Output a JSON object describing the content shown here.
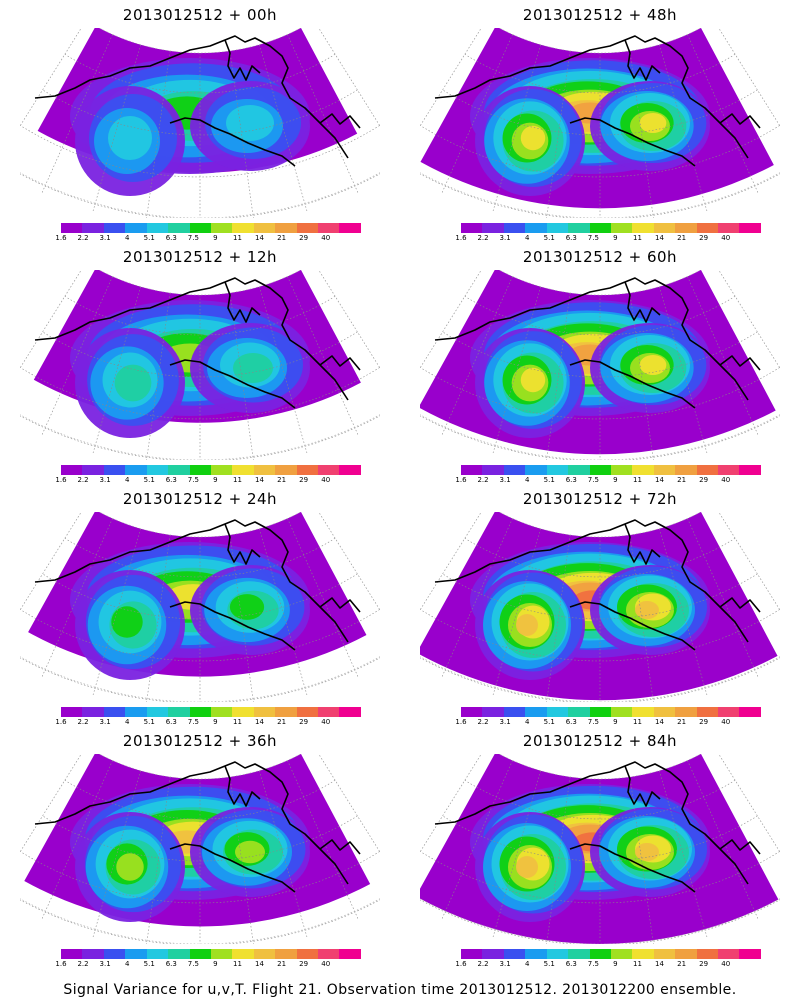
{
  "panels": [
    {
      "title": "2013012512 + 00h",
      "intensity": 0.3,
      "col": 0,
      "row": 0
    },
    {
      "title": "2013012512 + 48h",
      "intensity": 0.75,
      "col": 1,
      "row": 0
    },
    {
      "title": "2013012512 + 12h",
      "intensity": 0.4,
      "col": 0,
      "row": 1
    },
    {
      "title": "2013012512 + 60h",
      "intensity": 0.8,
      "col": 1,
      "row": 1
    },
    {
      "title": "2013012512 + 24h",
      "intensity": 0.55,
      "col": 0,
      "row": 2
    },
    {
      "title": "2013012512 + 72h",
      "intensity": 0.85,
      "col": 1,
      "row": 2
    },
    {
      "title": "2013012512 + 36h",
      "intensity": 0.65,
      "col": 0,
      "row": 3
    },
    {
      "title": "2013012512 + 84h",
      "intensity": 0.9,
      "col": 1,
      "row": 3
    }
  ],
  "colorbar": {
    "labels": [
      "1.6",
      "2.2",
      "3.1",
      "4",
      "5.1",
      "6.3",
      "7.5",
      "9",
      "11",
      "14",
      "21",
      "29",
      "40"
    ],
    "colors": [
      "#9900cc",
      "#7a22e0",
      "#3a50f0",
      "#1a9cf0",
      "#22c8e0",
      "#20d0a0",
      "#10d010",
      "#a0e020",
      "#f0e030",
      "#f0c040",
      "#f0a040",
      "#f07040",
      "#f04070",
      "#f00090"
    ]
  },
  "footer": "Signal Variance for u,v,T. Flight 21. Observation time 2013012512. 2013012200 ensemble."
}
